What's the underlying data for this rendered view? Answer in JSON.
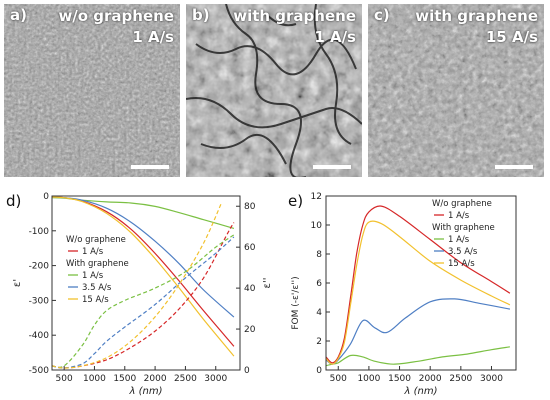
{
  "panels": [
    {
      "letter": "a)",
      "line1": "w/o graphene",
      "line2": "1 A/s"
    },
    {
      "letter": "b)",
      "line1": "with graphene",
      "line2": "1 A/s"
    },
    {
      "letter": "c)",
      "line1": "with graphene",
      "line2": "15 A/s"
    }
  ],
  "chart_data": [
    {
      "type": "line",
      "panel": "d)",
      "xlabel": "λ (nm)",
      "ylabel_left": "ε'",
      "ylabel_right": "ε''",
      "xlim": [
        300,
        3400
      ],
      "ylim_left": [
        -500,
        0
      ],
      "ylim_right": [
        0,
        85
      ],
      "xticks": [
        500,
        1000,
        1500,
        2000,
        2500,
        3000
      ],
      "yticks_left": [
        0,
        -100,
        -200,
        -300,
        -400,
        -500
      ],
      "yticks_right": [
        0,
        20,
        40,
        60,
        80
      ],
      "legend": {
        "group1": "W/o graphene",
        "group2": "With graphene"
      },
      "series": [
        {
          "name": "1 A/s",
          "group": "W/o graphene",
          "color": "#d62728",
          "component": "eps_real",
          "x": [
            300,
            500,
            800,
            1200,
            1600,
            2000,
            2400,
            2800,
            3300
          ],
          "y": [
            -3,
            -5,
            -15,
            -45,
            -95,
            -165,
            -245,
            -330,
            -432
          ]
        },
        {
          "name": "1 A/s",
          "group": "With graphene",
          "color": "#7bc043",
          "component": "eps_real",
          "x": [
            300,
            500,
            800,
            1200,
            1600,
            2000,
            2400,
            2800,
            3300
          ],
          "y": [
            -5,
            -6,
            -12,
            -17,
            -20,
            -30,
            -48,
            -68,
            -93
          ]
        },
        {
          "name": "3.5 A/s",
          "group": "With graphene",
          "color": "#4f7fc4",
          "component": "eps_real",
          "x": [
            300,
            500,
            800,
            1200,
            1600,
            2000,
            2400,
            2800,
            3300
          ],
          "y": [
            -3,
            -5,
            -12,
            -35,
            -75,
            -130,
            -195,
            -270,
            -348
          ]
        },
        {
          "name": "15 A/s",
          "group": "With graphene",
          "color": "#f2c12e",
          "component": "eps_real",
          "x": [
            300,
            500,
            800,
            1200,
            1600,
            2000,
            2400,
            2800,
            3300
          ],
          "y": [
            -3,
            -5,
            -16,
            -50,
            -105,
            -180,
            -265,
            -355,
            -460
          ]
        },
        {
          "name": "1 A/s",
          "group": "W/o graphene",
          "color": "#d62728",
          "component": "eps_imag",
          "x": [
            300,
            500,
            800,
            1200,
            1600,
            2000,
            2400,
            2800,
            3200,
            3300
          ],
          "y": [
            2,
            1,
            2,
            5,
            11,
            19,
            30,
            45,
            67,
            72
          ]
        },
        {
          "name": "1 A/s",
          "group": "With graphene",
          "color": "#7bc043",
          "component": "eps_imag",
          "x": [
            300,
            500,
            800,
            1000,
            1200,
            1500,
            2000,
            2500,
            3000,
            3300
          ],
          "y": [
            2,
            2,
            12,
            22,
            29,
            34,
            40,
            48,
            60,
            66
          ]
        },
        {
          "name": "3.5 A/s",
          "group": "With graphene",
          "color": "#4f7fc4",
          "component": "eps_imag",
          "x": [
            300,
            500,
            800,
            1000,
            1200,
            1500,
            2000,
            2500,
            3000,
            3300
          ],
          "y": [
            2,
            1,
            3,
            8,
            14,
            21,
            32,
            45,
            57,
            65
          ]
        },
        {
          "name": "15 A/s",
          "group": "With graphene",
          "color": "#f2c12e",
          "component": "eps_imag",
          "x": [
            300,
            500,
            800,
            1200,
            1600,
            2000,
            2400,
            2800,
            3100
          ],
          "y": [
            2,
            1,
            2,
            6,
            14,
            26,
            42,
            62,
            82
          ]
        }
      ]
    },
    {
      "type": "line",
      "panel": "e)",
      "xlabel": "λ (nm)",
      "ylabel": "FOM (-ε'/ε'')",
      "xlim": [
        300,
        3400
      ],
      "ylim": [
        0,
        12
      ],
      "xticks": [
        500,
        1000,
        1500,
        2000,
        2500,
        3000
      ],
      "yticks": [
        0,
        2,
        4,
        6,
        8,
        10,
        12
      ],
      "legend": {
        "group1": "W/o graphene",
        "group2": "With graphene"
      },
      "series": [
        {
          "name": "1 A/s",
          "group": "W/o graphene",
          "color": "#d62728",
          "x": [
            300,
            400,
            500,
            600,
            700,
            800,
            900,
            1000,
            1200,
            1500,
            2000,
            2500,
            3000,
            3300
          ],
          "y": [
            0.9,
            0.5,
            0.9,
            2.2,
            5.0,
            8.0,
            10.0,
            10.9,
            11.3,
            10.6,
            9.0,
            7.4,
            6.1,
            5.3
          ]
        },
        {
          "name": "1 A/s",
          "group": "With graphene",
          "color": "#7bc043",
          "x": [
            300,
            400,
            500,
            700,
            900,
            1100,
            1400,
            1800,
            2200,
            2600,
            3000,
            3300
          ],
          "y": [
            0.3,
            0.4,
            0.5,
            1.0,
            0.9,
            0.6,
            0.4,
            0.6,
            0.9,
            1.1,
            1.4,
            1.6
          ]
        },
        {
          "name": "3.5 A/s",
          "group": "With graphene",
          "color": "#4f7fc4",
          "x": [
            300,
            400,
            500,
            700,
            900,
            1100,
            1300,
            1600,
            2000,
            2400,
            2800,
            3300
          ],
          "y": [
            0.7,
            0.4,
            0.7,
            1.8,
            3.4,
            2.9,
            2.6,
            3.6,
            4.7,
            4.9,
            4.6,
            4.2
          ]
        },
        {
          "name": "15 A/s",
          "group": "With graphene",
          "color": "#f2c12e",
          "x": [
            300,
            400,
            500,
            600,
            700,
            800,
            900,
            1000,
            1200,
            1500,
            2000,
            2500,
            3000,
            3300
          ],
          "y": [
            0.8,
            0.4,
            0.8,
            1.9,
            4.5,
            7.2,
            9.3,
            10.2,
            10.1,
            9.2,
            7.5,
            6.2,
            5.1,
            4.5
          ]
        }
      ]
    }
  ]
}
